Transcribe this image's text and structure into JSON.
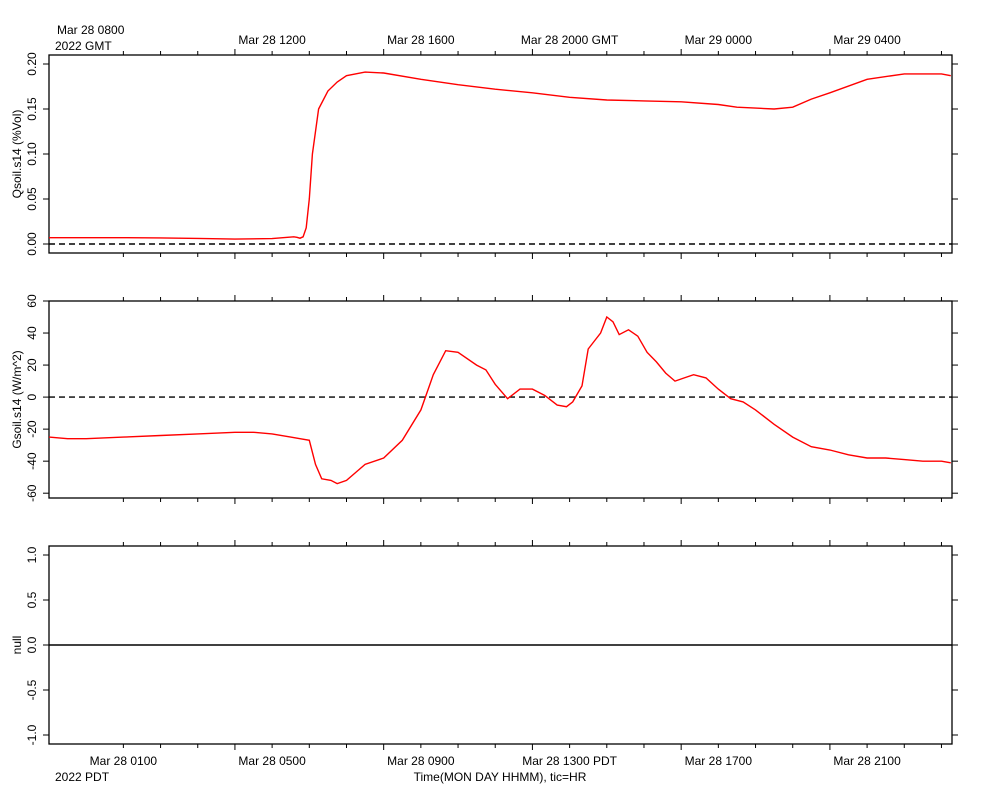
{
  "time_axis": {
    "top_labels": [
      "Mar 28 0800",
      "Mar 28 1200",
      "Mar 28 1600",
      "Mar 28 2000 GMT",
      "Mar 29 0000",
      "Mar 29 0400"
    ],
    "top_year": "2022 GMT",
    "bottom_labels": [
      "Mar 28 0100",
      "Mar 28 0500",
      "Mar 28 0900",
      "Mar 28 1300 PDT",
      "Mar 28 1700",
      "Mar 28 2100"
    ],
    "bottom_year": "2022 PDT",
    "xlabel": "Time(MON DAY HHMM), tic=HR"
  },
  "chart_data": [
    {
      "type": "line",
      "ylabel": "Qsoil.s14 (%Vol)",
      "ylim": [
        -0.01,
        0.21
      ],
      "yticks": [
        0.0,
        0.05,
        0.1,
        0.15,
        0.2
      ],
      "ytick_labels": [
        "0.00",
        "0.05",
        "0.10",
        "0.15",
        "0.20"
      ],
      "zero_line": "dashed",
      "series": [
        {
          "color": "#ff0000",
          "x": [
            "03-28 07:00",
            "03-28 08:00",
            "03-28 09:00",
            "03-28 10:00",
            "03-28 11:00",
            "03-28 12:00",
            "03-28 13:00",
            "03-28 13:25",
            "03-28 13:35",
            "03-28 13:40",
            "03-28 13:45",
            "03-28 13:50",
            "03-28 13:55",
            "03-28 14:00",
            "03-28 14:05",
            "03-28 14:15",
            "03-28 14:30",
            "03-28 14:45",
            "03-28 15:00",
            "03-28 15:30",
            "03-28 16:00",
            "03-28 17:00",
            "03-28 18:00",
            "03-28 19:00",
            "03-28 20:00",
            "03-28 21:00",
            "03-28 22:00",
            "03-28 23:00",
            "03-29 00:00",
            "03-29 01:00",
            "03-29 01:30",
            "03-29 02:00",
            "03-29 02:30",
            "03-29 03:00",
            "03-29 03:30",
            "03-29 04:00",
            "03-29 05:00",
            "03-29 06:00",
            "03-29 07:00",
            "03-29 07:15"
          ],
          "values": [
            0.007,
            0.007,
            0.007,
            0.0068,
            0.0062,
            0.0055,
            0.006,
            0.0075,
            0.008,
            0.0075,
            0.0065,
            0.008,
            0.018,
            0.05,
            0.1,
            0.15,
            0.17,
            0.18,
            0.187,
            0.191,
            0.19,
            0.183,
            0.177,
            0.172,
            0.168,
            0.163,
            0.16,
            0.159,
            0.158,
            0.155,
            0.152,
            0.151,
            0.15,
            0.152,
            0.161,
            0.168,
            0.183,
            0.189,
            0.189,
            0.187
          ]
        }
      ]
    },
    {
      "type": "line",
      "ylabel": "Gsoil.s14 (W/m^2)",
      "ylim": [
        -63,
        60
      ],
      "yticks": [
        -60,
        -40,
        -20,
        0,
        20,
        40,
        60
      ],
      "ytick_labels": [
        "-60",
        "-40",
        "-20",
        "0",
        "20",
        "40",
        "60"
      ],
      "zero_line": "dashed",
      "series": [
        {
          "color": "#ff0000",
          "x": [
            "03-28 07:00",
            "03-28 07:30",
            "03-28 08:00",
            "03-28 09:00",
            "03-28 10:00",
            "03-28 11:00",
            "03-28 12:00",
            "03-28 12:30",
            "03-28 13:00",
            "03-28 13:30",
            "03-28 13:45",
            "03-28 14:00",
            "03-28 14:10",
            "03-28 14:20",
            "03-28 14:35",
            "03-28 14:45",
            "03-28 15:00",
            "03-28 15:15",
            "03-28 15:30",
            "03-28 16:00",
            "03-28 16:30",
            "03-28 17:00",
            "03-28 17:20",
            "03-28 17:40",
            "03-28 18:00",
            "03-28 18:30",
            "03-28 18:45",
            "03-28 19:00",
            "03-28 19:20",
            "03-28 19:40",
            "03-28 20:00",
            "03-28 20:20",
            "03-28 20:40",
            "03-28 20:55",
            "03-28 21:05",
            "03-28 21:20",
            "03-28 21:30",
            "03-28 21:40",
            "03-28 21:50",
            "03-28 22:00",
            "03-28 22:10",
            "03-28 22:20",
            "03-28 22:35",
            "03-28 22:50",
            "03-28 23:05",
            "03-28 23:20",
            "03-28 23:35",
            "03-28 23:50",
            "03-29 00:05",
            "03-29 00:20",
            "03-29 00:40",
            "03-29 01:00",
            "03-29 01:20",
            "03-29 01:40",
            "03-29 02:00",
            "03-29 02:30",
            "03-29 03:00",
            "03-29 03:30",
            "03-29 04:00",
            "03-29 04:30",
            "03-29 05:00",
            "03-29 05:30",
            "03-29 06:00",
            "03-29 06:30",
            "03-29 07:00",
            "03-29 07:15"
          ],
          "values": [
            -25,
            -26,
            -26,
            -25,
            -24,
            -23,
            -22,
            -22,
            -23,
            -25,
            -26,
            -27,
            -42,
            -51,
            -52,
            -54,
            -52,
            -47,
            -42,
            -38,
            -27,
            -8,
            14,
            29,
            28,
            20,
            17,
            8,
            -1,
            5,
            5,
            1,
            -5,
            -6,
            -3,
            7,
            30,
            35,
            40,
            50,
            47,
            39,
            42,
            38,
            28,
            22,
            15,
            10,
            12,
            14,
            12,
            5,
            -1,
            -3,
            -8,
            -17,
            -25,
            -31,
            -33,
            -36,
            -38,
            -38,
            -39,
            -40,
            -40,
            -41
          ]
        }
      ]
    },
    {
      "type": "line",
      "ylabel": "null",
      "ylim": [
        -1.1,
        1.1
      ],
      "yticks": [
        -1.0,
        -0.5,
        0.0,
        0.5,
        1.0
      ],
      "ytick_labels": [
        "-1.0",
        "-0.5",
        "0.0",
        "0.5",
        "1.0"
      ],
      "zero_line": "solid",
      "series": []
    }
  ]
}
